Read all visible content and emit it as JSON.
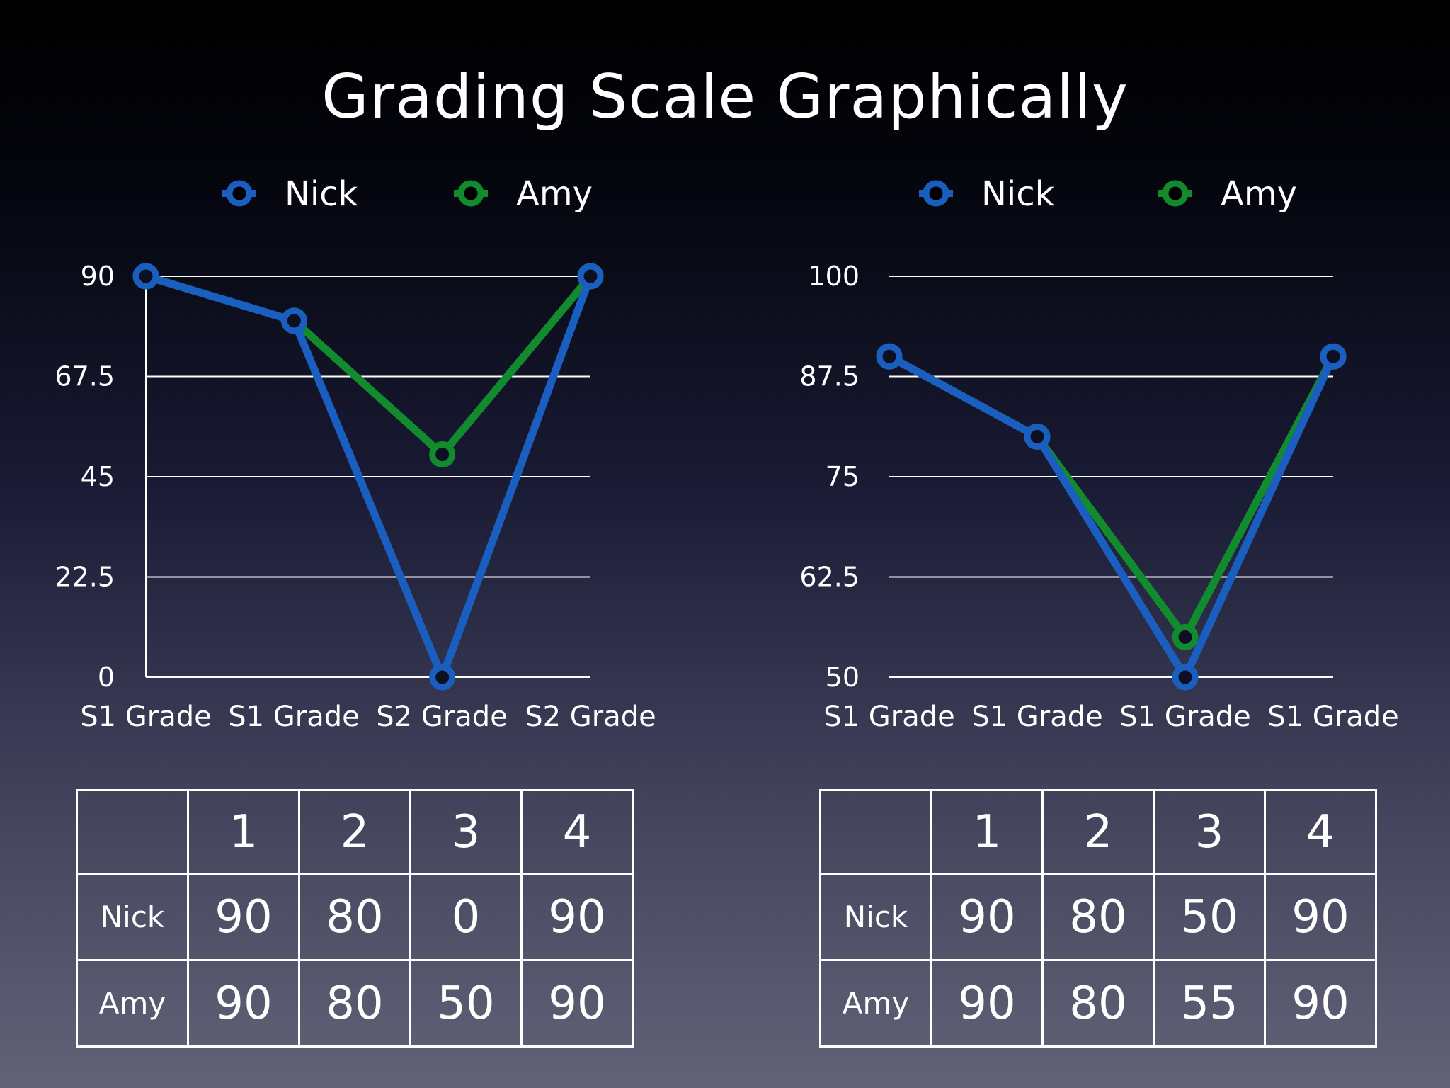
{
  "slide": {
    "title": "Grading Scale Graphically"
  },
  "colors": {
    "nick": "#1a5fc0",
    "amy": "#128a2e",
    "grid": "#ffffff"
  },
  "chart_data": [
    {
      "type": "line",
      "categories": [
        "S1 Grade",
        "S1 Grade",
        "S2 Grade",
        "S2 Grade"
      ],
      "yticks": [
        "0",
        "22.5",
        "45",
        "67.5",
        "90"
      ],
      "ylim": [
        0,
        90
      ],
      "legend": "top",
      "grid": true,
      "series": [
        {
          "name": "Nick",
          "values": [
            90,
            80,
            0,
            90
          ]
        },
        {
          "name": "Amy",
          "values": [
            90,
            80,
            50,
            90
          ]
        }
      ]
    },
    {
      "type": "line",
      "categories": [
        "S1 Grade",
        "S1 Grade",
        "S1 Grade",
        "S1 Grade"
      ],
      "yticks": [
        "50",
        "62.5",
        "75",
        "87.5",
        "100"
      ],
      "ylim": [
        50,
        100
      ],
      "legend": "top",
      "grid": true,
      "series": [
        {
          "name": "Nick",
          "values": [
            90,
            80,
            50,
            90
          ]
        },
        {
          "name": "Amy",
          "values": [
            90,
            80,
            55,
            90
          ]
        }
      ]
    }
  ],
  "tables": [
    {
      "header": [
        "",
        "1",
        "2",
        "3",
        "4"
      ],
      "rows": [
        [
          "Nick",
          "90",
          "80",
          "0",
          "90"
        ],
        [
          "Amy",
          "90",
          "80",
          "50",
          "90"
        ]
      ]
    },
    {
      "header": [
        "",
        "1",
        "2",
        "3",
        "4"
      ],
      "rows": [
        [
          "Nick",
          "90",
          "80",
          "50",
          "90"
        ],
        [
          "Amy",
          "90",
          "80",
          "55",
          "90"
        ]
      ]
    }
  ]
}
